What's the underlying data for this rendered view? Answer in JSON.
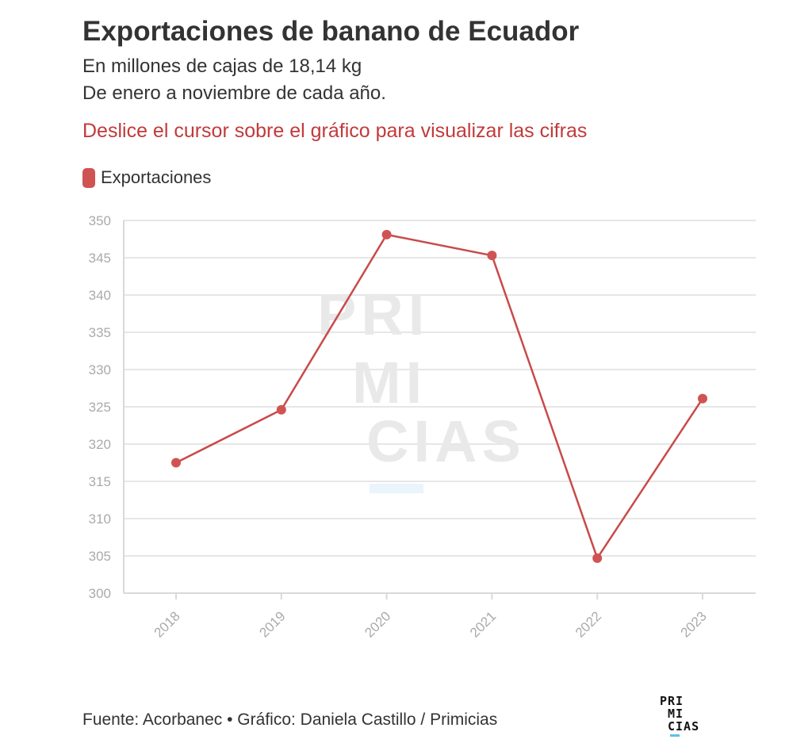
{
  "title": "Exportaciones de banano de Ecuador",
  "subtitle_1": "En millones de cajas de 18,14 kg",
  "subtitle_2": "De enero a noviembre de cada año.",
  "hint": "Deslice el cursor sobre el gráfico para visualizar las cifras",
  "legend": {
    "label": "Exportaciones",
    "color": "#d05353"
  },
  "footer": "Fuente: Acorbanec • Gráfico: Daniela Castillo / Primicias",
  "logo": {
    "line1": "PRI",
    "line2": "MI",
    "line3": "CIAS"
  },
  "watermark": {
    "line1": "PRI",
    "line2": "MI",
    "line3": "CIAS"
  },
  "colors": {
    "line": "#c94a4a",
    "marker": "#d05353",
    "grid": "#e6e6e6",
    "hint": "#c23a3a"
  },
  "chart_data": {
    "type": "line",
    "title": "Exportaciones de banano de Ecuador",
    "xlabel": "",
    "ylabel": "",
    "categories": [
      "2018",
      "2019",
      "2020",
      "2021",
      "2022",
      "2023"
    ],
    "series": [
      {
        "name": "Exportaciones",
        "values": [
          317.5,
          324.6,
          348.1,
          345.3,
          304.7,
          326.1
        ]
      }
    ],
    "yticks": [
      300,
      305,
      310,
      315,
      320,
      325,
      330,
      335,
      340,
      345,
      350
    ],
    "ylim": [
      300,
      350
    ],
    "grid": true,
    "legend": "top-left"
  }
}
